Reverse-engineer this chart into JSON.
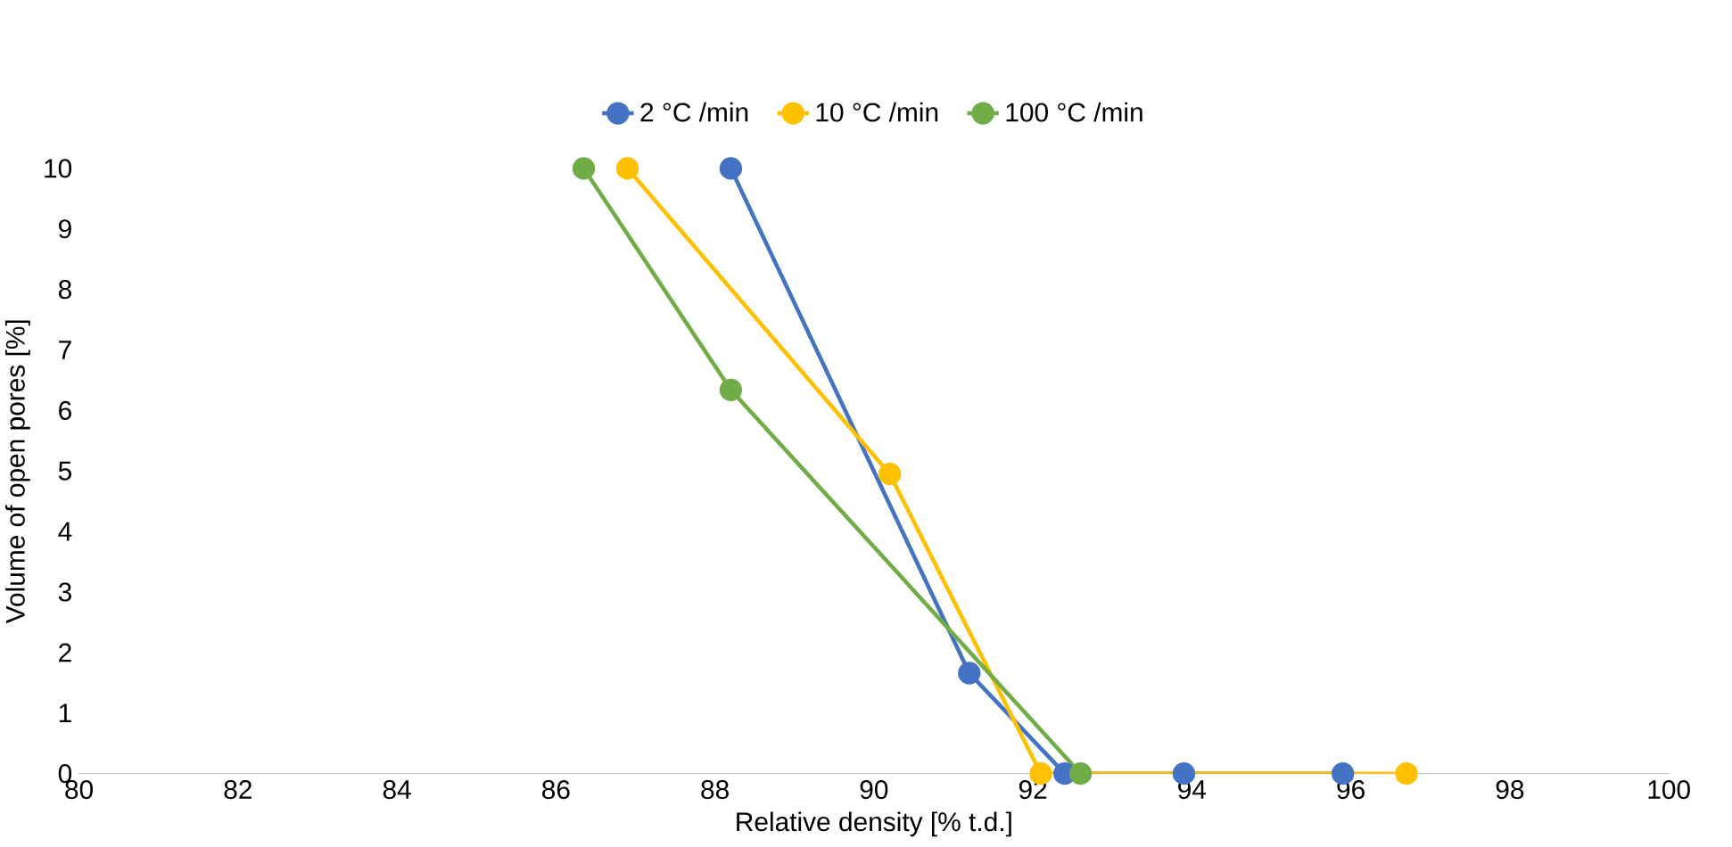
{
  "chart_data": {
    "type": "line",
    "xlabel": "Relative density [% t.d.]",
    "ylabel": "Volume of open pores [%]",
    "xlim": [
      80,
      100
    ],
    "xticks": [
      80,
      82,
      84,
      86,
      88,
      90,
      92,
      94,
      96,
      98,
      100
    ],
    "ylim": [
      0,
      10
    ],
    "yticks": [
      0,
      1,
      2,
      3,
      4,
      5,
      6,
      7,
      8,
      9,
      10
    ],
    "legend": "top",
    "marker": "circle",
    "line_style": "solid",
    "series": [
      {
        "name": "2 °C /min",
        "color": "#4472c4",
        "x": [
          88.2,
          91.2,
          92.4,
          93.9,
          95.9
        ],
        "values": [
          10,
          1.66,
          0,
          0,
          0
        ]
      },
      {
        "name": "10 °C /min",
        "color": "#ffc000",
        "x": [
          86.9,
          90.2,
          92.1,
          96.7
        ],
        "values": [
          10,
          4.95,
          0,
          0
        ]
      },
      {
        "name": "100 °C /min",
        "color": "#70ad47",
        "x": [
          86.35,
          88.2,
          92.6
        ],
        "values": [
          10,
          6.34,
          0
        ]
      }
    ]
  }
}
